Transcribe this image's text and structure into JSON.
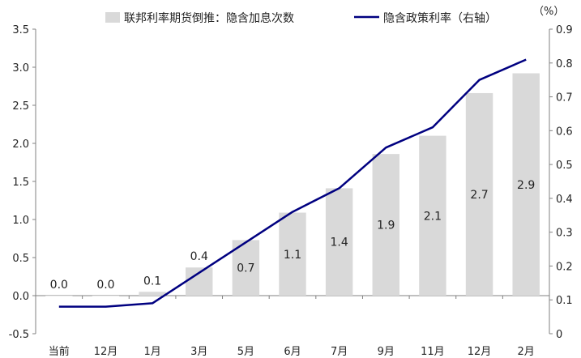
{
  "chart_data": {
    "type": "bar",
    "categories": [
      "当前",
      "12月",
      "1月",
      "3月",
      "5月",
      "6月",
      "7月",
      "9月",
      "11月",
      "12月",
      "2月"
    ],
    "series": [
      {
        "name": "联邦利率期货倒推：隐含加息次数",
        "type": "bar",
        "axis": "left",
        "color": "#d9d9d9",
        "values": [
          0.0,
          0.0,
          0.05,
          0.37,
          0.73,
          1.09,
          1.41,
          1.86,
          2.1,
          2.66,
          2.92
        ],
        "labels": [
          "0.0",
          "0.0",
          "0.1",
          "0.4",
          "0.7",
          "1.1",
          "1.4",
          "1.9",
          "2.1",
          "2.7",
          "2.9"
        ]
      },
      {
        "name": "隐含政策利率（右轴）",
        "type": "line",
        "axis": "right",
        "color": "#000080",
        "values": [
          0.08,
          0.08,
          0.09,
          0.18,
          0.27,
          0.36,
          0.43,
          0.55,
          0.61,
          0.75,
          0.81
        ]
      }
    ],
    "y_left": {
      "min": -0.5,
      "max": 3.5,
      "step": 0.5,
      "ticks": [
        "-0.5",
        "0.0",
        "0.5",
        "1.0",
        "1.5",
        "2.0",
        "2.5",
        "3.0",
        "3.5"
      ]
    },
    "y_right": {
      "min": 0,
      "max": 0.9,
      "step": 0.1,
      "unit": "（%）",
      "ticks": [
        "0",
        "0.1",
        "0.2",
        "0.3",
        "0.4",
        "0.5",
        "0.6",
        "0.7",
        "0.8",
        "0.9"
      ]
    },
    "legend_position": "top"
  }
}
